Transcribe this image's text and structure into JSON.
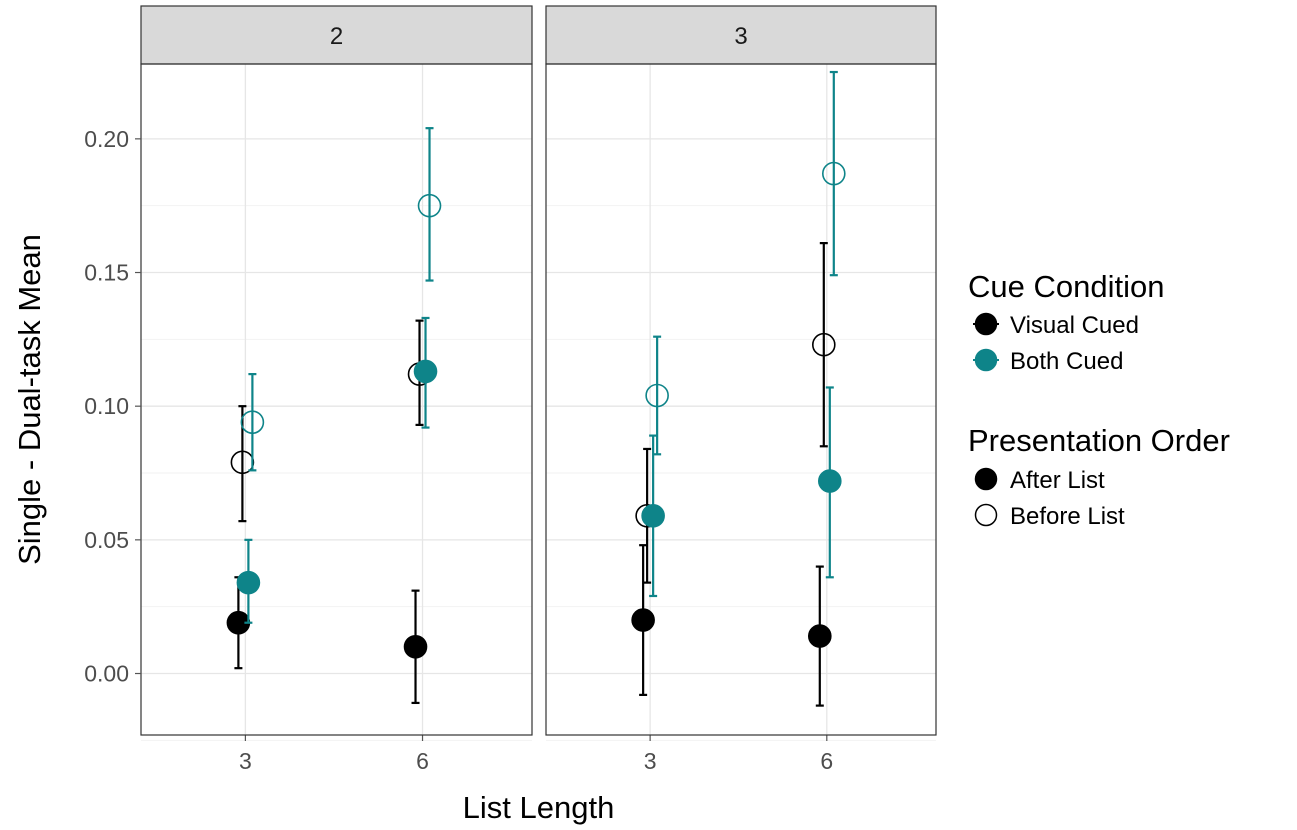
{
  "chart_data": {
    "type": "scatter",
    "facets": [
      "2",
      "3"
    ],
    "xlabel": "List Length",
    "ylabel": "Single - Dual-task Mean",
    "x_ticks": [
      "3",
      "6"
    ],
    "ylim": [
      -0.023,
      0.228
    ],
    "y_ticks": [
      0.0,
      0.05,
      0.1,
      0.15,
      0.2
    ],
    "y_tick_labels": [
      "0.00",
      "0.05",
      "0.10",
      "0.15",
      "0.20"
    ],
    "grid": true,
    "legend_position": "right",
    "colors": {
      "Visual Cued": "#000000",
      "Both Cued": "#0e8489"
    },
    "legend": {
      "cue_title": "Cue Condition",
      "cue_items": [
        {
          "label": "Visual Cued",
          "color": "#000000"
        },
        {
          "label": "Both Cued",
          "color": "#0e8489"
        }
      ],
      "order_title": "Presentation Order",
      "order_items": [
        {
          "label": "After List",
          "filled": true
        },
        {
          "label": "Before List",
          "filled": false
        }
      ]
    },
    "points": [
      {
        "facet": "2",
        "x": "3",
        "cue": "Visual Cued",
        "order": "After List",
        "y": 0.019,
        "ymin": 0.002,
        "ymax": 0.036
      },
      {
        "facet": "2",
        "x": "3",
        "cue": "Visual Cued",
        "order": "Before List",
        "y": 0.079,
        "ymin": 0.057,
        "ymax": 0.1
      },
      {
        "facet": "2",
        "x": "3",
        "cue": "Both Cued",
        "order": "After List",
        "y": 0.034,
        "ymin": 0.019,
        "ymax": 0.05
      },
      {
        "facet": "2",
        "x": "3",
        "cue": "Both Cued",
        "order": "Before List",
        "y": 0.094,
        "ymin": 0.076,
        "ymax": 0.112
      },
      {
        "facet": "2",
        "x": "6",
        "cue": "Visual Cued",
        "order": "After List",
        "y": 0.01,
        "ymin": -0.011,
        "ymax": 0.031
      },
      {
        "facet": "2",
        "x": "6",
        "cue": "Visual Cued",
        "order": "Before List",
        "y": 0.112,
        "ymin": 0.093,
        "ymax": 0.132
      },
      {
        "facet": "2",
        "x": "6",
        "cue": "Both Cued",
        "order": "After List",
        "y": 0.113,
        "ymin": 0.092,
        "ymax": 0.133
      },
      {
        "facet": "2",
        "x": "6",
        "cue": "Both Cued",
        "order": "Before List",
        "y": 0.175,
        "ymin": 0.147,
        "ymax": 0.204
      },
      {
        "facet": "3",
        "x": "3",
        "cue": "Visual Cued",
        "order": "After List",
        "y": 0.02,
        "ymin": -0.008,
        "ymax": 0.048
      },
      {
        "facet": "3",
        "x": "3",
        "cue": "Visual Cued",
        "order": "Before List",
        "y": 0.059,
        "ymin": 0.034,
        "ymax": 0.084
      },
      {
        "facet": "3",
        "x": "3",
        "cue": "Both Cued",
        "order": "After List",
        "y": 0.059,
        "ymin": 0.029,
        "ymax": 0.089
      },
      {
        "facet": "3",
        "x": "3",
        "cue": "Both Cued",
        "order": "Before List",
        "y": 0.104,
        "ymin": 0.082,
        "ymax": 0.126
      },
      {
        "facet": "3",
        "x": "6",
        "cue": "Visual Cued",
        "order": "After List",
        "y": 0.014,
        "ymin": -0.012,
        "ymax": 0.04
      },
      {
        "facet": "3",
        "x": "6",
        "cue": "Visual Cued",
        "order": "Before List",
        "y": 0.123,
        "ymin": 0.085,
        "ymax": 0.161
      },
      {
        "facet": "3",
        "x": "6",
        "cue": "Both Cued",
        "order": "After List",
        "y": 0.072,
        "ymin": 0.036,
        "ymax": 0.107
      },
      {
        "facet": "3",
        "x": "6",
        "cue": "Both Cued",
        "order": "Before List",
        "y": 0.187,
        "ymin": 0.149,
        "ymax": 0.225
      }
    ]
  }
}
